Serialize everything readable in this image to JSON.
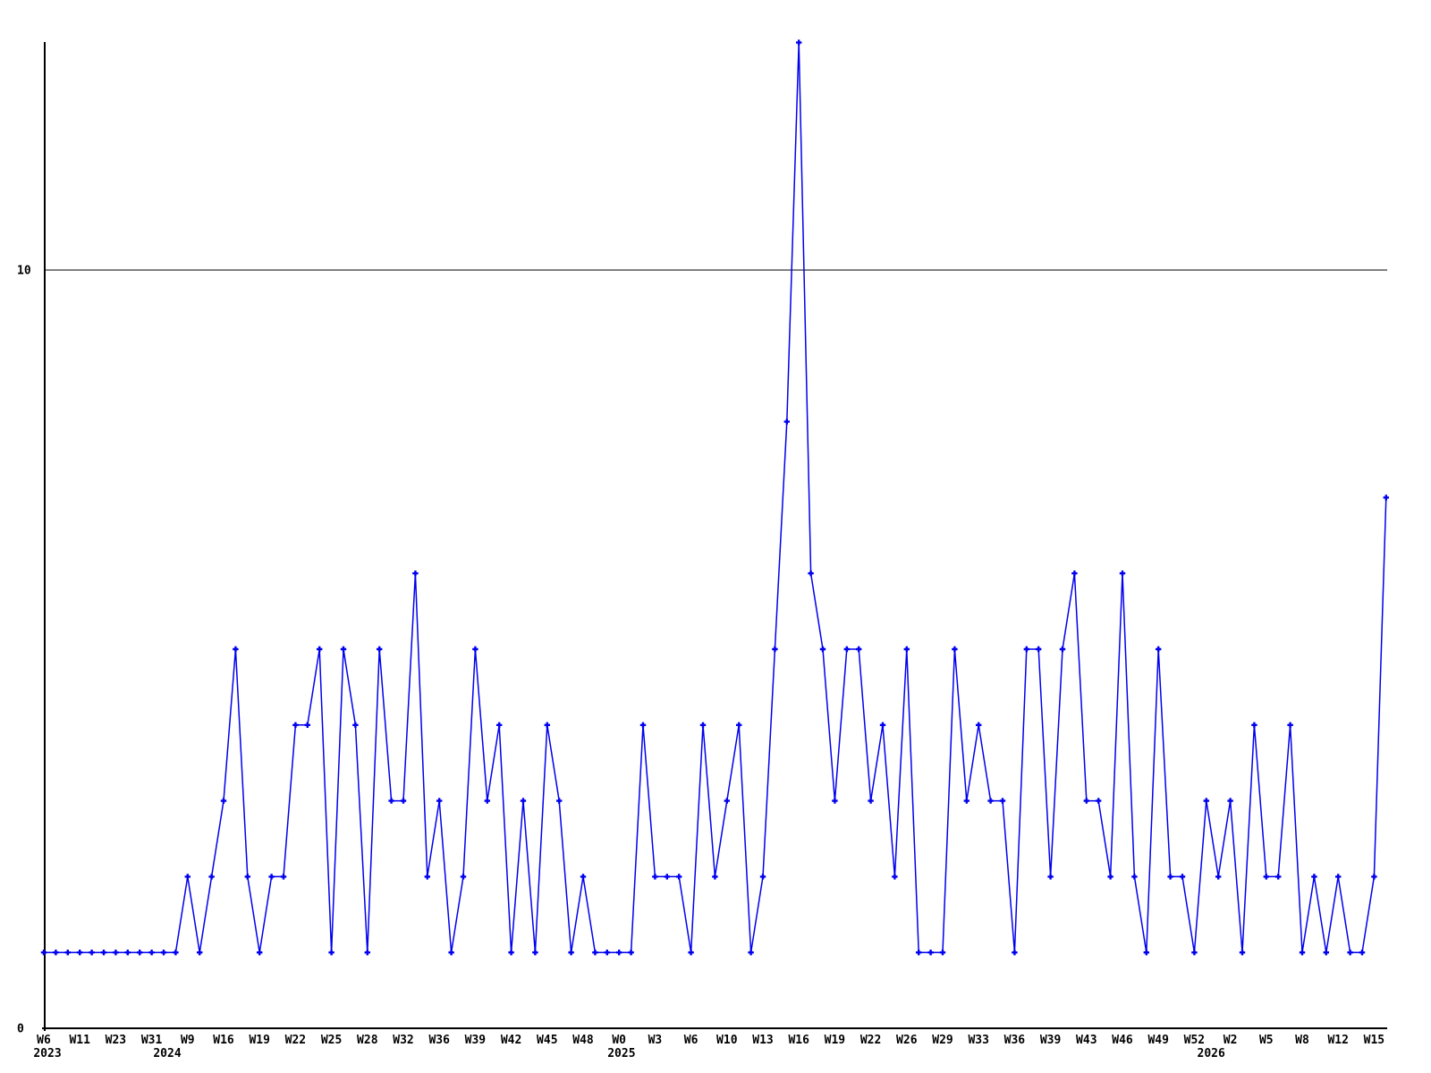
{
  "chart_data": {
    "type": "line",
    "title": "",
    "line_color": "#0000ee",
    "axis_color": "#000000",
    "marker_shape": "plus",
    "legend_position": "none",
    "grid": "horizontal-at-10-only",
    "values": [
      1,
      1,
      1,
      1,
      1,
      1,
      1,
      1,
      1,
      1,
      1,
      1,
      2,
      1,
      2,
      3,
      5,
      2,
      1,
      2,
      2,
      4,
      4,
      5,
      1,
      5,
      4,
      1,
      5,
      3,
      3,
      6,
      2,
      3,
      1,
      2,
      5,
      3,
      4,
      1,
      3,
      1,
      4,
      3,
      1,
      2,
      1,
      1,
      1,
      1,
      4,
      2,
      2,
      2,
      1,
      4,
      2,
      3,
      4,
      1,
      2,
      5,
      8,
      13,
      6,
      5,
      3,
      5,
      5,
      3,
      4,
      2,
      5,
      1,
      1,
      1,
      5,
      3,
      4,
      3,
      3,
      1,
      5,
      5,
      2,
      5,
      6,
      3,
      3,
      2,
      6,
      2,
      1,
      5,
      2,
      2,
      1,
      3,
      2,
      3,
      1,
      4,
      2,
      2,
      4,
      1,
      2,
      1,
      2,
      1,
      1,
      2,
      7
    ],
    "x_ticks": {
      "every": 3,
      "labels": [
        "W6",
        "W11",
        "W23",
        "W31",
        "W9",
        "W16",
        "W19",
        "W22",
        "W25",
        "W28",
        "W32",
        "W36",
        "W39",
        "W42",
        "W45",
        "W48",
        "W0",
        "W3",
        "W6",
        "W10",
        "W13",
        "W16",
        "W19",
        "W22",
        "W26",
        "W29",
        "W33",
        "W36",
        "W39",
        "W43",
        "W46",
        "W49",
        "W52",
        "W2",
        "W5",
        "W8",
        "W12",
        "W15"
      ]
    },
    "year_labels": [
      {
        "text": "2023",
        "index": 0.3
      },
      {
        "text": "2024",
        "index": 10.3
      },
      {
        "text": "2025",
        "index": 48.2
      },
      {
        "text": "2026",
        "index": 97.4
      }
    ],
    "y_axis": {
      "ticks": [
        {
          "value": 0,
          "label": "0",
          "gridline": false
        },
        {
          "value": 10,
          "label": "10",
          "gridline": true
        }
      ],
      "ylim": [
        0,
        13
      ]
    }
  }
}
